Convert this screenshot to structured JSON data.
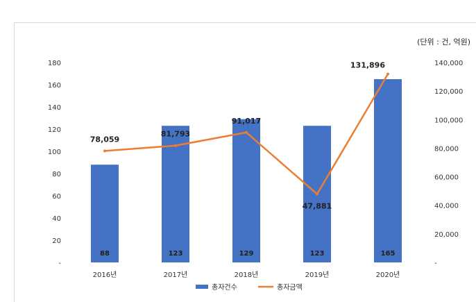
{
  "chart_data": {
    "type": "bar+line",
    "unit_label": "(단위 : 건, 억원)",
    "categories": [
      "2016년",
      "2017년",
      "2018년",
      "2019년",
      "2020년"
    ],
    "series": [
      {
        "name": "총자건수",
        "type": "bar",
        "axis": "left",
        "values": [
          88,
          123,
          129,
          123,
          165
        ],
        "color": "#4472c4"
      },
      {
        "name": "총자금액",
        "type": "line",
        "axis": "right",
        "values": [
          78059,
          81793,
          91017,
          47881,
          131896
        ],
        "color": "#ed7d31"
      }
    ],
    "y_left": {
      "ylim": [
        0,
        180
      ],
      "ticks": [
        "-",
        "20",
        "40",
        "60",
        "80",
        "100",
        "120",
        "140",
        "160",
        "180"
      ]
    },
    "y_right": {
      "ylim": [
        0,
        140000
      ],
      "ticks": [
        "-",
        "20,000",
        "40,000",
        "60,000",
        "80,000",
        "100,000",
        "120,000",
        "140,000"
      ]
    },
    "bar_labels": [
      "88",
      "123",
      "129",
      "123",
      "165"
    ],
    "line_labels": [
      "78,059",
      "81,793",
      "91,017",
      "47,881",
      "131,896"
    ],
    "legend_position": "bottom",
    "grid": false
  }
}
